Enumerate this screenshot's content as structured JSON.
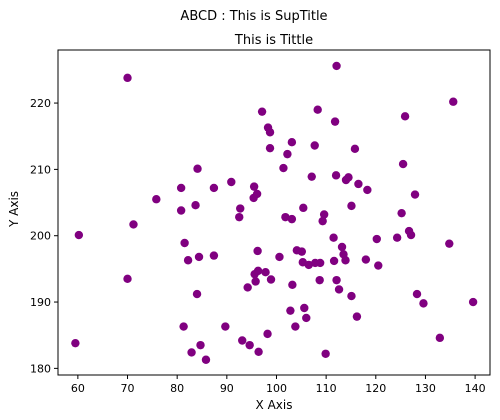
{
  "chart_data": {
    "type": "scatter",
    "suptitle": "ABCD : This is SupTitle",
    "title": "This is Tittle",
    "xlabel": "X Axis",
    "ylabel": "Y Axis",
    "xlim": [
      56,
      143
    ],
    "ylim": [
      179,
      228
    ],
    "xticks": [
      60,
      70,
      80,
      90,
      100,
      110,
      120,
      130,
      140
    ],
    "yticks": [
      180,
      190,
      200,
      210,
      220
    ],
    "grid": false,
    "marker_color": "#800080",
    "series": [
      {
        "points": [
          [
            59.5,
            183.8
          ],
          [
            60.2,
            200.1
          ],
          [
            70.0,
            223.8
          ],
          [
            70.0,
            193.5
          ],
          [
            71.2,
            201.7
          ],
          [
            75.8,
            205.5
          ],
          [
            80.8,
            207.2
          ],
          [
            80.8,
            203.8
          ],
          [
            81.3,
            186.3
          ],
          [
            81.5,
            198.9
          ],
          [
            82.2,
            196.3
          ],
          [
            82.9,
            182.4
          ],
          [
            83.7,
            204.6
          ],
          [
            84.0,
            191.2
          ],
          [
            84.1,
            210.1
          ],
          [
            84.4,
            196.8
          ],
          [
            84.7,
            183.5
          ],
          [
            85.8,
            181.3
          ],
          [
            87.4,
            207.2
          ],
          [
            87.4,
            197.0
          ],
          [
            89.7,
            186.3
          ],
          [
            90.9,
            208.1
          ],
          [
            92.5,
            202.8
          ],
          [
            92.7,
            204.1
          ],
          [
            93.1,
            184.2
          ],
          [
            94.2,
            192.2
          ],
          [
            94.6,
            183.5
          ],
          [
            95.4,
            205.7
          ],
          [
            95.5,
            207.4
          ],
          [
            95.6,
            194.2
          ],
          [
            95.8,
            193.1
          ],
          [
            96.1,
            206.3
          ],
          [
            96.2,
            197.7
          ],
          [
            96.3,
            194.7
          ],
          [
            96.4,
            182.5
          ],
          [
            97.1,
            218.7
          ],
          [
            97.8,
            194.5
          ],
          [
            98.2,
            185.2
          ],
          [
            98.3,
            216.3
          ],
          [
            98.7,
            215.6
          ],
          [
            98.7,
            213.2
          ],
          [
            98.9,
            193.4
          ],
          [
            100.6,
            196.8
          ],
          [
            101.4,
            210.2
          ],
          [
            101.8,
            202.8
          ],
          [
            102.2,
            212.3
          ],
          [
            102.8,
            188.7
          ],
          [
            103.1,
            214.1
          ],
          [
            103.1,
            202.5
          ],
          [
            103.2,
            192.6
          ],
          [
            103.8,
            186.3
          ],
          [
            104.1,
            197.8
          ],
          [
            105.1,
            197.6
          ],
          [
            105.3,
            196.0
          ],
          [
            105.4,
            204.2
          ],
          [
            105.6,
            189.1
          ],
          [
            106.0,
            187.6
          ],
          [
            106.5,
            195.6
          ],
          [
            107.1,
            208.9
          ],
          [
            107.7,
            213.6
          ],
          [
            107.8,
            195.9
          ],
          [
            108.3,
            219.0
          ],
          [
            108.7,
            193.3
          ],
          [
            108.8,
            195.9
          ],
          [
            109.3,
            202.2
          ],
          [
            109.6,
            203.2
          ],
          [
            109.9,
            182.2
          ],
          [
            111.5,
            199.7
          ],
          [
            111.6,
            196.2
          ],
          [
            111.8,
            217.2
          ],
          [
            112.0,
            209.1
          ],
          [
            112.1,
            225.6
          ],
          [
            112.1,
            193.3
          ],
          [
            112.6,
            191.9
          ],
          [
            113.2,
            198.3
          ],
          [
            113.5,
            197.2
          ],
          [
            113.9,
            196.3
          ],
          [
            114.0,
            208.4
          ],
          [
            114.5,
            208.8
          ],
          [
            115.1,
            204.5
          ],
          [
            115.1,
            190.9
          ],
          [
            115.8,
            213.1
          ],
          [
            116.2,
            187.8
          ],
          [
            116.5,
            207.8
          ],
          [
            118.0,
            196.4
          ],
          [
            118.3,
            206.9
          ],
          [
            120.2,
            199.5
          ],
          [
            120.5,
            195.5
          ],
          [
            124.3,
            199.7
          ],
          [
            125.2,
            203.4
          ],
          [
            125.5,
            210.8
          ],
          [
            125.9,
            218.0
          ],
          [
            126.7,
            200.7
          ],
          [
            127.1,
            200.1
          ],
          [
            127.9,
            206.2
          ],
          [
            128.3,
            191.2
          ],
          [
            129.6,
            189.8
          ],
          [
            132.9,
            184.6
          ],
          [
            134.8,
            198.8
          ],
          [
            135.6,
            220.2
          ],
          [
            139.6,
            190.0
          ]
        ]
      }
    ]
  }
}
